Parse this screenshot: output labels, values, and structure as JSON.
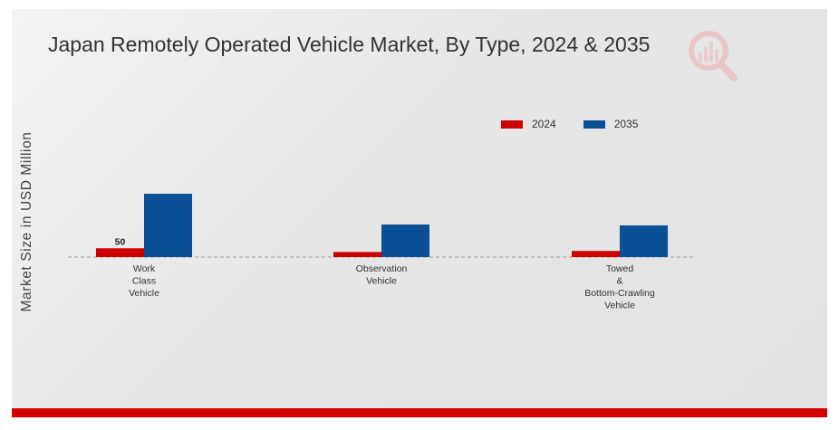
{
  "chart_data": {
    "type": "bar",
    "title": "Japan Remotely Operated Vehicle Market, By Type, 2024 & 2035",
    "ylabel": "Market Size in USD Million",
    "xlabel": "",
    "categories": [
      [
        "Work",
        "Class",
        "Vehicle"
      ],
      [
        "Observation",
        "Vehicle"
      ],
      [
        "Towed",
        "&",
        "Bottom-Crawling",
        "Vehicle"
      ]
    ],
    "series": [
      {
        "name": "2024",
        "color": "#cc0000",
        "values": [
          50,
          29,
          35
        ]
      },
      {
        "name": "2035",
        "color": "#0b4f96",
        "values": [
          360,
          185,
          180
        ]
      }
    ],
    "data_labels": [
      {
        "series": 0,
        "index": 0,
        "text": "50"
      }
    ],
    "ylim": [
      0,
      1000
    ],
    "grid": false,
    "legend_position": "top-right",
    "baseline_style": "dashed"
  },
  "branding": {
    "logo_icon": "chart-magnifier-icon",
    "accent_color": "#d40000"
  }
}
